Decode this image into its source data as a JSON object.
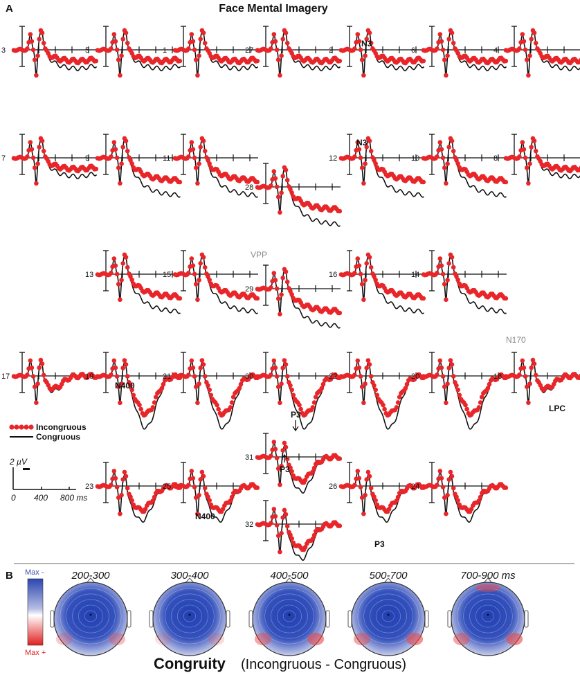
{
  "panel_a_label": "A",
  "panel_b_label": "B",
  "title": "Face Mental Imagery",
  "chart_data": {
    "type": "line",
    "title": "Face Mental Imagery",
    "series": [
      {
        "name": "Incongruous",
        "color": "#e8262a",
        "style": "dotted"
      },
      {
        "name": "Congruous",
        "color": "#111111",
        "style": "solid"
      }
    ],
    "x_axis": {
      "unit": "ms",
      "range": [
        -100,
        900
      ],
      "ticks": [
        0,
        400,
        800
      ],
      "tick_labels": [
        "0",
        "400",
        "800 ms"
      ]
    },
    "y_scale_label": "2 µV",
    "electrodes": [
      {
        "id": "3"
      },
      {
        "id": "5"
      },
      {
        "id": "1"
      },
      {
        "id": "27"
      },
      {
        "id": "2"
      },
      {
        "id": "6"
      },
      {
        "id": "4"
      },
      {
        "id": "7"
      },
      {
        "id": "9"
      },
      {
        "id": "11"
      },
      {
        "id": "28"
      },
      {
        "id": "12"
      },
      {
        "id": "10"
      },
      {
        "id": "8"
      },
      {
        "id": "13"
      },
      {
        "id": "15"
      },
      {
        "id": "29"
      },
      {
        "id": "16"
      },
      {
        "id": "14"
      },
      {
        "id": "17"
      },
      {
        "id": "19"
      },
      {
        "id": "21"
      },
      {
        "id": "30"
      },
      {
        "id": "22"
      },
      {
        "id": "20"
      },
      {
        "id": "18"
      },
      {
        "id": "31"
      },
      {
        "id": "23"
      },
      {
        "id": "25"
      },
      {
        "id": "32"
      },
      {
        "id": "26"
      },
      {
        "id": "24"
      }
    ],
    "annotations": [
      "N3",
      "N3",
      "VPP",
      "N170",
      "N400",
      "P3",
      "P3",
      "LPC",
      "N400",
      "P3"
    ]
  },
  "legend": {
    "incongruous": "Incongruous",
    "congruous": "Congruous"
  },
  "scale": {
    "voltage": "2 µV",
    "t0": "0",
    "t400": "400",
    "t800": "800 ms"
  },
  "colorbar": {
    "top": "Max -",
    "bottom": "Max +"
  },
  "topomaps": [
    {
      "range": "200-300"
    },
    {
      "range": "300-400"
    },
    {
      "range": "400-500"
    },
    {
      "range": "500-700"
    },
    {
      "range": "700-900 ms"
    }
  ],
  "footer": {
    "bold": "Congruity",
    "rest": "(Incongruous - Congruous)"
  }
}
